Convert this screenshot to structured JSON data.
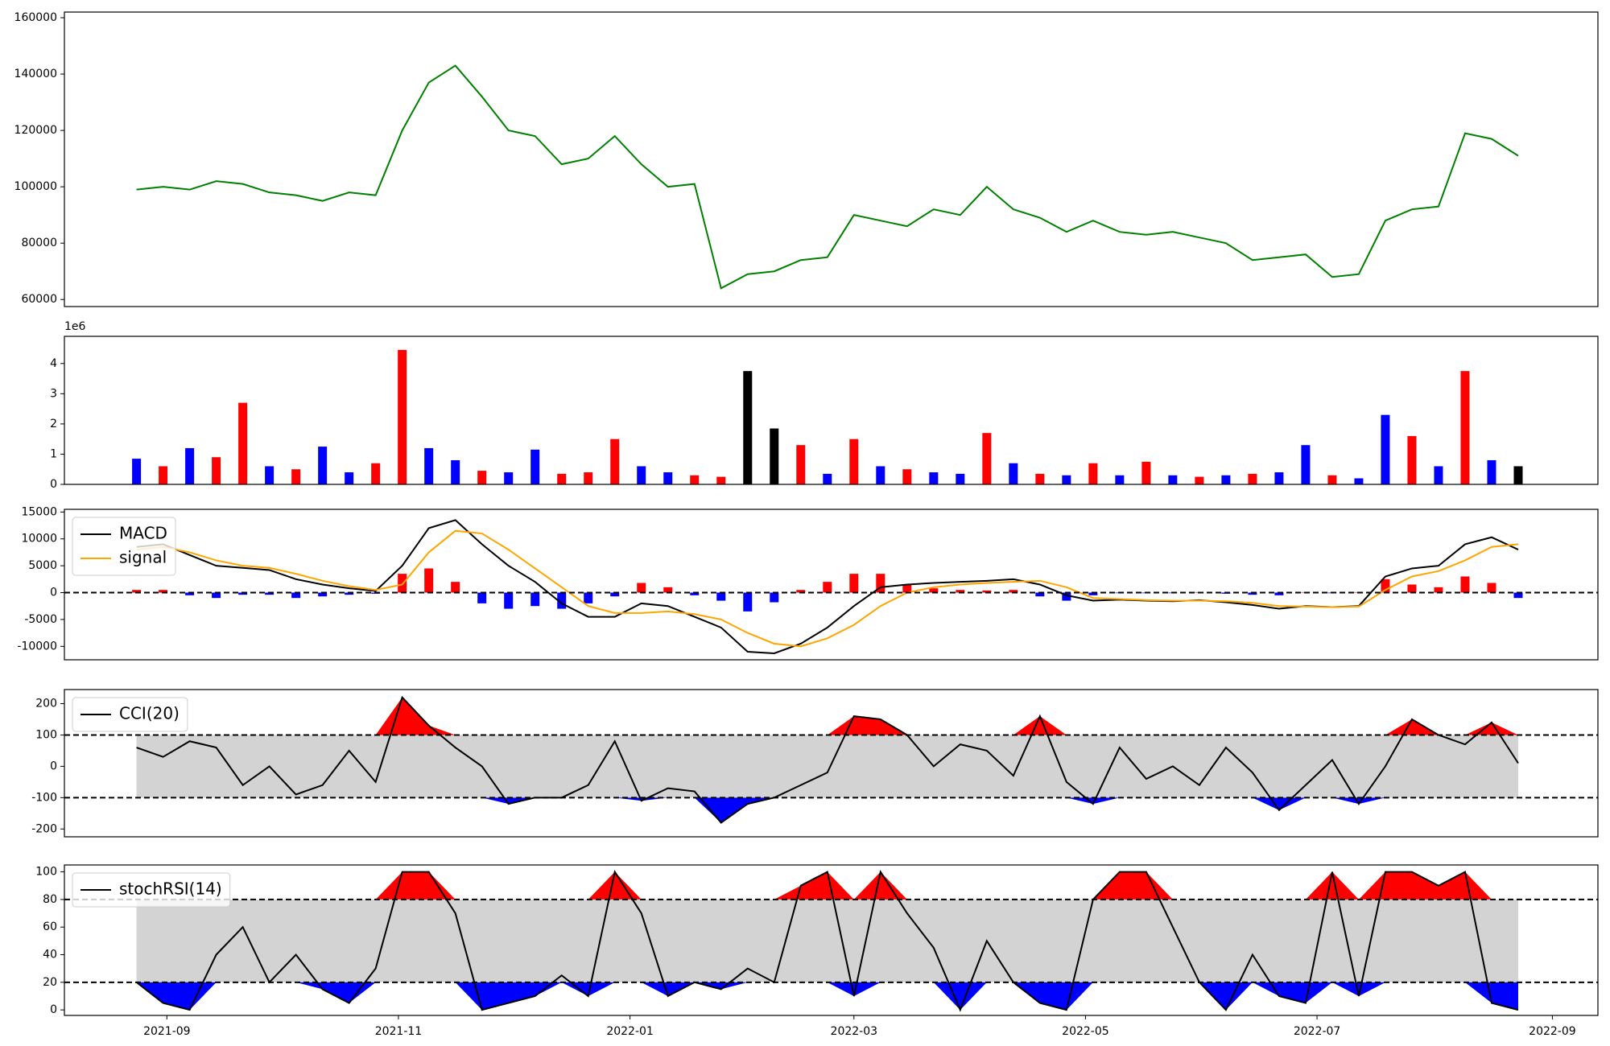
{
  "chart_data": [
    {
      "type": "line",
      "x": [
        "2021-08-24",
        "2021-08-31",
        "2021-09-07",
        "2021-09-14",
        "2021-09-21",
        "2021-09-28",
        "2021-10-05",
        "2021-10-12",
        "2021-10-19",
        "2021-10-26",
        "2021-11-02",
        "2021-11-09",
        "2021-11-16",
        "2021-11-23",
        "2021-11-30",
        "2021-12-07",
        "2021-12-14",
        "2021-12-21",
        "2021-12-28",
        "2022-01-04",
        "2022-01-11",
        "2022-01-18",
        "2022-01-25",
        "2022-02-01",
        "2022-02-08",
        "2022-02-15",
        "2022-02-22",
        "2022-03-01",
        "2022-03-08",
        "2022-03-15",
        "2022-03-22",
        "2022-03-29",
        "2022-04-05",
        "2022-04-12",
        "2022-04-19",
        "2022-04-26",
        "2022-05-03",
        "2022-05-10",
        "2022-05-17",
        "2022-05-24",
        "2022-05-31",
        "2022-06-07",
        "2022-06-14",
        "2022-06-21",
        "2022-06-28",
        "2022-07-05",
        "2022-07-12",
        "2022-07-19",
        "2022-07-26",
        "2022-08-02",
        "2022-08-09",
        "2022-08-16",
        "2022-08-23"
      ],
      "series": [
        {
          "color": "green",
          "values": [
            99000,
            100000,
            99000,
            102000,
            101000,
            98000,
            97000,
            95000,
            98000,
            97000,
            120000,
            137000,
            143000,
            132000,
            120000,
            118000,
            108000,
            110000,
            118000,
            108000,
            100000,
            101000,
            64000,
            69000,
            70000,
            74000,
            75000,
            90000,
            88000,
            86000,
            92000,
            90000,
            100000,
            92000,
            89000,
            84000,
            88000,
            84000,
            83000,
            84000,
            82000,
            80000,
            74000,
            75000,
            76000,
            68000,
            69000,
            88000,
            92000,
            93000,
            119000,
            117000,
            111000
          ]
        }
      ],
      "xlim": [
        "2021-08-05",
        "2022-09-13"
      ],
      "ylim": [
        57500,
        162000
      ],
      "yticks": [
        60000,
        80000,
        100000,
        120000,
        140000,
        160000
      ]
    },
    {
      "type": "bar",
      "x": [
        "2021-08-24",
        "2021-08-31",
        "2021-09-07",
        "2021-09-14",
        "2021-09-21",
        "2021-09-28",
        "2021-10-05",
        "2021-10-12",
        "2021-10-19",
        "2021-10-26",
        "2021-11-02",
        "2021-11-09",
        "2021-11-16",
        "2021-11-23",
        "2021-11-30",
        "2021-12-07",
        "2021-12-14",
        "2021-12-21",
        "2021-12-28",
        "2022-01-04",
        "2022-01-11",
        "2022-01-18",
        "2022-01-25",
        "2022-02-01",
        "2022-02-08",
        "2022-02-15",
        "2022-02-22",
        "2022-03-01",
        "2022-03-08",
        "2022-03-15",
        "2022-03-22",
        "2022-03-29",
        "2022-04-05",
        "2022-04-12",
        "2022-04-19",
        "2022-04-26",
        "2022-05-03",
        "2022-05-10",
        "2022-05-17",
        "2022-05-24",
        "2022-05-31",
        "2022-06-07",
        "2022-06-14",
        "2022-06-21",
        "2022-06-28",
        "2022-07-05",
        "2022-07-12",
        "2022-07-19",
        "2022-07-26",
        "2022-08-02",
        "2022-08-09",
        "2022-08-16",
        "2022-08-23"
      ],
      "values": [
        850000,
        600000,
        1200000,
        900000,
        2700000,
        600000,
        500000,
        1250000,
        400000,
        700000,
        4450000,
        1200000,
        800000,
        450000,
        400000,
        1150000,
        350000,
        400000,
        1500000,
        600000,
        400000,
        300000,
        250000,
        3750000,
        1850000,
        1300000,
        350000,
        1500000,
        600000,
        500000,
        400000,
        350000,
        1700000,
        700000,
        350000,
        300000,
        700000,
        300000,
        750000,
        300000,
        250000,
        300000,
        350000,
        400000,
        1300000,
        300000,
        200000,
        2300000,
        1600000,
        600000,
        3750000,
        800000,
        600000
      ],
      "colors": [
        "blue",
        "red",
        "blue",
        "red",
        "red",
        "blue",
        "red",
        "blue",
        "blue",
        "red",
        "red",
        "blue",
        "blue",
        "red",
        "blue",
        "blue",
        "red",
        "red",
        "red",
        "blue",
        "blue",
        "red",
        "red",
        "black",
        "black",
        "red",
        "blue",
        "red",
        "blue",
        "red",
        "blue",
        "blue",
        "red",
        "blue",
        "red",
        "blue",
        "red",
        "blue",
        "red",
        "blue",
        "red",
        "blue",
        "red",
        "blue",
        "blue",
        "red",
        "blue",
        "blue",
        "red",
        "blue",
        "red",
        "blue",
        "black"
      ],
      "xlim": [
        "2021-08-05",
        "2022-09-13"
      ],
      "ylim": [
        0,
        4900000
      ],
      "yticks": [
        {
          "value": 0,
          "label": "0"
        },
        {
          "value": 1000000,
          "label": "1"
        },
        {
          "value": 2000000,
          "label": "2"
        },
        {
          "value": 3000000,
          "label": "3"
        },
        {
          "value": 4000000,
          "label": "4"
        }
      ],
      "offset_label": "1e6"
    },
    {
      "type": "line",
      "x": [
        "2021-08-24",
        "2021-08-31",
        "2021-09-07",
        "2021-09-14",
        "2021-09-21",
        "2021-09-28",
        "2021-10-05",
        "2021-10-12",
        "2021-10-19",
        "2021-10-26",
        "2021-11-02",
        "2021-11-09",
        "2021-11-16",
        "2021-11-23",
        "2021-11-30",
        "2021-12-07",
        "2021-12-14",
        "2021-12-21",
        "2021-12-28",
        "2022-01-04",
        "2022-01-11",
        "2022-01-18",
        "2022-01-25",
        "2022-02-01",
        "2022-02-08",
        "2022-02-15",
        "2022-02-22",
        "2022-03-01",
        "2022-03-08",
        "2022-03-15",
        "2022-03-22",
        "2022-03-29",
        "2022-04-05",
        "2022-04-12",
        "2022-04-19",
        "2022-04-26",
        "2022-05-03",
        "2022-05-10",
        "2022-05-17",
        "2022-05-24",
        "2022-05-31",
        "2022-06-07",
        "2022-06-14",
        "2022-06-21",
        "2022-06-28",
        "2022-07-05",
        "2022-07-12",
        "2022-07-19",
        "2022-07-26",
        "2022-08-02",
        "2022-08-09",
        "2022-08-16",
        "2022-08-23"
      ],
      "series": [
        {
          "name": "MACD",
          "color": "black",
          "values": [
            8500,
            9000,
            7000,
            5000,
            4600,
            4200,
            2500,
            1500,
            800,
            300,
            5000,
            12000,
            13500,
            9000,
            5000,
            2000,
            -2000,
            -4500,
            -4500,
            -2000,
            -2500,
            -4500,
            -6500,
            -11000,
            -11300,
            -9500,
            -6500,
            -2500,
            1000,
            1500,
            1800,
            2000,
            2200,
            2500,
            1500,
            -500,
            -1500,
            -1300,
            -1500,
            -1600,
            -1400,
            -1800,
            -2300,
            -3000,
            -2500,
            -2700,
            -2500,
            3000,
            4500,
            5000,
            9000,
            10300,
            8000
          ]
        },
        {
          "name": "signal",
          "color": "orange",
          "values": [
            8000,
            8500,
            7500,
            6000,
            5000,
            4600,
            3500,
            2200,
            1200,
            500,
            1500,
            7500,
            11500,
            11000,
            8000,
            4500,
            1000,
            -2500,
            -3800,
            -3800,
            -3500,
            -4000,
            -5000,
            -7500,
            -9500,
            -10000,
            -8500,
            -6000,
            -2500,
            0,
            1000,
            1500,
            1800,
            2000,
            2200,
            1000,
            -1000,
            -1200,
            -1400,
            -1500,
            -1500,
            -1600,
            -1900,
            -2500,
            -2600,
            -2700,
            -2600,
            500,
            3000,
            4000,
            6000,
            8500,
            9000
          ]
        },
        {
          "style": "bar",
          "positive_color": "red",
          "negative_color": "blue",
          "values": [
            500,
            500,
            -500,
            -1000,
            -400,
            -400,
            -1000,
            -700,
            -400,
            -200,
            3500,
            4500,
            2000,
            -2000,
            -3000,
            -2500,
            -3000,
            -2000,
            -700,
            1800,
            1000,
            -500,
            -1500,
            -3500,
            -1800,
            500,
            2000,
            3500,
            3500,
            1500,
            800,
            500,
            400,
            500,
            -700,
            -1500,
            -500,
            -100,
            -100,
            -100,
            100,
            -200,
            -400,
            -500,
            100,
            -100,
            100,
            2500,
            1500,
            1000,
            3000,
            1800,
            -1000
          ]
        }
      ],
      "hlines": [
        0
      ],
      "xlim": [
        "2021-08-05",
        "2022-09-13"
      ],
      "ylim": [
        -12500,
        15500
      ],
      "yticks": [
        -10000,
        -5000,
        0,
        5000,
        10000,
        15000
      ],
      "legend": "upper left"
    },
    {
      "type": "line",
      "x": [
        "2021-08-24",
        "2021-08-31",
        "2021-09-07",
        "2021-09-14",
        "2021-09-21",
        "2021-09-28",
        "2021-10-05",
        "2021-10-12",
        "2021-10-19",
        "2021-10-26",
        "2021-11-02",
        "2021-11-09",
        "2021-11-16",
        "2021-11-23",
        "2021-11-30",
        "2021-12-07",
        "2021-12-14",
        "2021-12-21",
        "2021-12-28",
        "2022-01-04",
        "2022-01-11",
        "2022-01-18",
        "2022-01-25",
        "2022-02-01",
        "2022-02-08",
        "2022-02-15",
        "2022-02-22",
        "2022-03-01",
        "2022-03-08",
        "2022-03-15",
        "2022-03-22",
        "2022-03-29",
        "2022-04-05",
        "2022-04-12",
        "2022-04-19",
        "2022-04-26",
        "2022-05-03",
        "2022-05-10",
        "2022-05-17",
        "2022-05-24",
        "2022-05-31",
        "2022-06-07",
        "2022-06-14",
        "2022-06-21",
        "2022-06-28",
        "2022-07-05",
        "2022-07-12",
        "2022-07-19",
        "2022-07-26",
        "2022-08-02",
        "2022-08-09",
        "2022-08-16",
        "2022-08-23"
      ],
      "series": [
        {
          "name": "CCI(20)",
          "color": "black",
          "values": [
            60,
            30,
            80,
            60,
            -60,
            0,
            -90,
            -60,
            50,
            -50,
            220,
            130,
            60,
            0,
            -120,
            -100,
            -100,
            -60,
            80,
            -110,
            -70,
            -80,
            -180,
            -120,
            -100,
            -60,
            -20,
            160,
            150,
            100,
            0,
            70,
            50,
            -30,
            160,
            -50,
            -120,
            60,
            -40,
            0,
            -60,
            60,
            -20,
            -140,
            -60,
            20,
            -120,
            0,
            150,
            100,
            70,
            140,
            10
          ]
        }
      ],
      "band": {
        "lower": -100,
        "upper": 100,
        "color": "lightgray",
        "above_color": "red",
        "below_color": "blue"
      },
      "xlim": [
        "2021-08-05",
        "2022-09-13"
      ],
      "ylim": [
        -225,
        245
      ],
      "yticks": [
        -200,
        -100,
        0,
        100,
        200
      ],
      "legend": "upper left"
    },
    {
      "type": "line",
      "x": [
        "2021-08-24",
        "2021-08-31",
        "2021-09-07",
        "2021-09-14",
        "2021-09-21",
        "2021-09-28",
        "2021-10-05",
        "2021-10-12",
        "2021-10-19",
        "2021-10-26",
        "2021-11-02",
        "2021-11-09",
        "2021-11-16",
        "2021-11-23",
        "2021-11-30",
        "2021-12-07",
        "2021-12-14",
        "2021-12-21",
        "2021-12-28",
        "2022-01-04",
        "2022-01-11",
        "2022-01-18",
        "2022-01-25",
        "2022-02-01",
        "2022-02-08",
        "2022-02-15",
        "2022-02-22",
        "2022-03-01",
        "2022-03-08",
        "2022-03-15",
        "2022-03-22",
        "2022-03-29",
        "2022-04-05",
        "2022-04-12",
        "2022-04-19",
        "2022-04-26",
        "2022-05-03",
        "2022-05-10",
        "2022-05-17",
        "2022-05-24",
        "2022-05-31",
        "2022-06-07",
        "2022-06-14",
        "2022-06-21",
        "2022-06-28",
        "2022-07-05",
        "2022-07-12",
        "2022-07-19",
        "2022-07-26",
        "2022-08-02",
        "2022-08-09",
        "2022-08-16",
        "2022-08-23"
      ],
      "series": [
        {
          "name": "stochRSI(14)",
          "color": "black",
          "values": [
            20,
            5,
            0,
            40,
            60,
            20,
            40,
            15,
            5,
            30,
            100,
            100,
            70,
            0,
            5,
            10,
            25,
            10,
            100,
            70,
            10,
            20,
            15,
            30,
            20,
            90,
            100,
            10,
            100,
            70,
            45,
            0,
            50,
            20,
            5,
            0,
            80,
            100,
            100,
            60,
            20,
            0,
            40,
            10,
            5,
            100,
            10,
            100,
            100,
            90,
            100,
            5,
            0
          ]
        }
      ],
      "band": {
        "lower": 20,
        "upper": 80,
        "color": "lightgray",
        "above_color": "red",
        "below_color": "blue"
      },
      "xlim": [
        "2021-08-05",
        "2022-09-13"
      ],
      "ylim": [
        -4,
        105
      ],
      "yticks": [
        0,
        20,
        40,
        60,
        80,
        100
      ],
      "legend": "upper left",
      "xticks": [
        {
          "value": "2021-09-01",
          "label": "2021-09"
        },
        {
          "value": "2021-11-01",
          "label": "2021-11"
        },
        {
          "value": "2022-01-01",
          "label": "2022-01"
        },
        {
          "value": "2022-03-01",
          "label": "2022-03"
        },
        {
          "value": "2022-05-01",
          "label": "2022-05"
        },
        {
          "value": "2022-07-01",
          "label": "2022-07"
        },
        {
          "value": "2022-09-01",
          "label": "2022-09"
        }
      ]
    }
  ]
}
